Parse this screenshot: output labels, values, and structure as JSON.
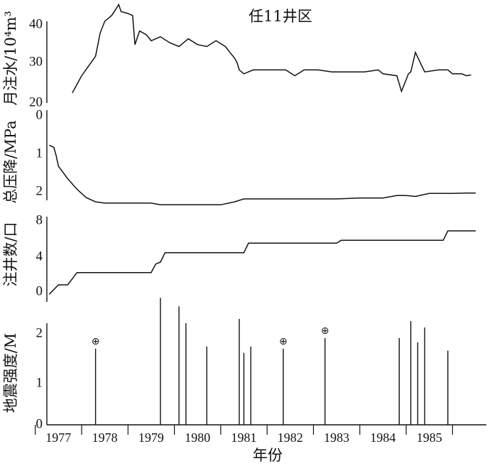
{
  "chart_data": [
    {
      "type": "line",
      "title": "任11井区",
      "ylabel": "月注水/10⁴m³",
      "ylim": [
        20,
        45
      ],
      "yticks": [
        "20",
        "30",
        "40"
      ],
      "series": [
        {
          "x": [
            1977.3,
            1977.5,
            1977.8,
            1977.9,
            1978.0,
            1978.1,
            1978.15,
            1978.25,
            1978.3,
            1978.35,
            1978.5,
            1978.55,
            1978.6,
            1978.65,
            1978.75,
            1978.9,
            1979.0,
            1979.2,
            1979.4,
            1979.6,
            1979.8,
            1980.0,
            1980.2,
            1980.4,
            1980.6,
            1980.7,
            1980.8,
            1980.85,
            1980.9,
            1981.0,
            1981.2,
            1981.3,
            1981.6,
            1981.9,
            1982.1,
            1982.3,
            1982.6,
            1982.9,
            1983.3,
            1983.6,
            1983.9,
            1984.0,
            1984.3,
            1984.4,
            1984.5,
            1984.55,
            1984.6,
            1984.7,
            1984.9,
            1985.2,
            1985.4,
            1985.5,
            1985.7,
            1985.8,
            1985.9
          ],
          "y": [
            22.6,
            27,
            32,
            38,
            41,
            42,
            42.5,
            44.3,
            45.3,
            43.5,
            43,
            42.7,
            42.5,
            35,
            38.5,
            37.5,
            36,
            37,
            35.5,
            34.5,
            36.5,
            35,
            34.5,
            36,
            34.5,
            33,
            31.5,
            30.5,
            28.5,
            27.5,
            28.5,
            28.5,
            28.5,
            28.5,
            27,
            28.5,
            28.5,
            28,
            28,
            28,
            28.5,
            27.5,
            27,
            23,
            26,
            27.5,
            28,
            33,
            28,
            28.5,
            28.5,
            27.5,
            27.5,
            27,
            27.2
          ]
        }
      ]
    },
    {
      "type": "line",
      "ylabel": "总压降/MPa",
      "ylim": [
        0,
        2.2
      ],
      "yticks": [
        "0",
        "1",
        "2"
      ],
      "series": [
        {
          "x": [
            1976.8,
            1976.9,
            1976.95,
            1977.0,
            1977.2,
            1977.4,
            1977.6,
            1977.8,
            1978.0,
            1978.5,
            1979.0,
            1979.2,
            1979.6,
            1980.0,
            1980.5,
            1980.8,
            1981.0,
            1981.2,
            1981.5,
            1982.0,
            1983.0,
            1983.5,
            1984.0,
            1984.3,
            1984.5,
            1984.7,
            1985.0,
            1985.5,
            1985.8,
            1986.0
          ],
          "y": [
            0.7,
            0.75,
            0.95,
            1.2,
            1.5,
            1.75,
            1.95,
            2.05,
            2.08,
            2.08,
            2.08,
            2.12,
            2.12,
            2.12,
            2.12,
            2.05,
            1.98,
            1.98,
            1.98,
            1.98,
            1.98,
            1.96,
            1.96,
            1.9,
            1.9,
            1.92,
            1.85,
            1.85,
            1.84,
            1.84
          ]
        }
      ]
    },
    {
      "type": "line",
      "ylabel": "注井数/口",
      "ylim": [
        -1,
        8
      ],
      "yticks": [
        "0",
        "4",
        "8"
      ],
      "series": [
        {
          "x": [
            1976.8,
            1977.0,
            1977.2,
            1977.4,
            1979.0,
            1979.1,
            1979.2,
            1979.3,
            1981.0,
            1981.1,
            1983.0,
            1983.1,
            1985.3,
            1985.4,
            1986.0
          ],
          "y": [
            -0.2,
            0.8,
            0.8,
            2.1,
            2.1,
            3.0,
            3.2,
            4.2,
            4.2,
            5.2,
            5.2,
            5.5,
            5.5,
            6.5,
            6.5
          ]
        }
      ]
    },
    {
      "type": "bar",
      "ylabel": "地震强度/M",
      "xlabel": "年份",
      "ylim": [
        0,
        2.4
      ],
      "yticks": [
        "0",
        "1",
        "2"
      ],
      "xticks": [
        "1977",
        "1978",
        "1979",
        "1980",
        "1981",
        "1982",
        "1983",
        "1984",
        "1985"
      ],
      "marker_symbol": "⊕",
      "events": [
        {
          "x": 1977.8,
          "y": 1.8,
          "marked": true
        },
        {
          "x": 1979.2,
          "y": 3.0
        },
        {
          "x": 1979.6,
          "y": 2.8
        },
        {
          "x": 1979.75,
          "y": 2.4
        },
        {
          "x": 1980.2,
          "y": 1.85
        },
        {
          "x": 1980.9,
          "y": 2.5
        },
        {
          "x": 1981.0,
          "y": 1.7
        },
        {
          "x": 1981.15,
          "y": 1.85
        },
        {
          "x": 1981.85,
          "y": 1.8,
          "marked": true
        },
        {
          "x": 1982.75,
          "y": 2.05,
          "marked": true
        },
        {
          "x": 1984.35,
          "y": 2.05
        },
        {
          "x": 1984.6,
          "y": 2.45
        },
        {
          "x": 1984.75,
          "y": 1.95
        },
        {
          "x": 1984.9,
          "y": 2.3
        },
        {
          "x": 1985.4,
          "y": 1.75
        }
      ]
    }
  ]
}
